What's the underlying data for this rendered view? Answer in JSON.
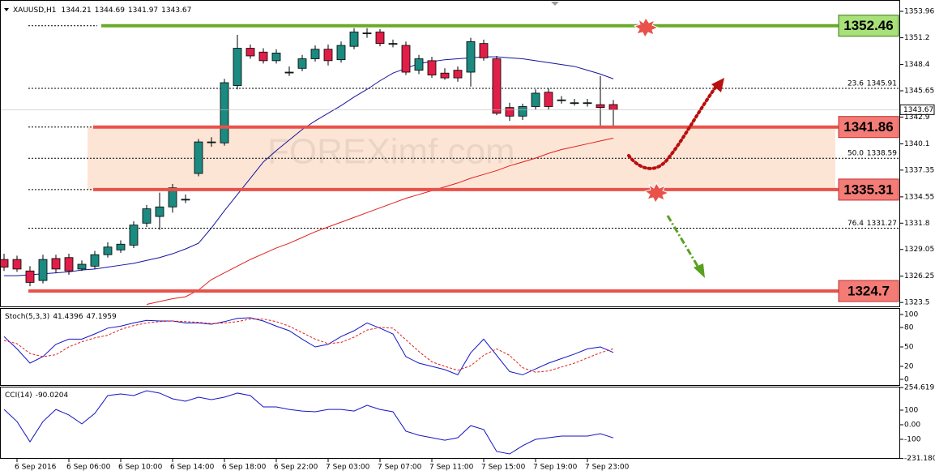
{
  "chart_data": [
    {
      "type": "candlestick",
      "title": "XAUUSD,H1",
      "watermark": "FOREXimf.com",
      "categories": [
        null,
        "6 Sep 2016",
        null,
        null,
        null,
        "6 Sep 06:00",
        null,
        null,
        null,
        "6 Sep 10:00",
        null,
        null,
        null,
        "6 Sep 14:00",
        null,
        null,
        null,
        "6 Sep 18:00",
        null,
        null,
        null,
        "6 Sep 22:00",
        null,
        null,
        null,
        "7 Sep 03:00",
        null,
        null,
        null,
        "7 Sep 07:00",
        null,
        null,
        null,
        "7 Sep 11:00",
        null,
        null,
        null,
        "7 Sep 15:00",
        null,
        null,
        null,
        "7 Sep 19:00",
        null,
        null,
        null,
        "7 Sep 23:00",
        null,
        null
      ],
      "open": [
        1328.0,
        1328.0,
        1326.8,
        1325.8,
        1328.1,
        1328.2,
        1327.0,
        1327.3,
        1328.5,
        1329.0,
        1329.5,
        1331.8,
        1332.5,
        1333.5,
        1334.3,
        1337.0,
        1340.3,
        1340.2,
        1346.2,
        1350.1,
        1349.7,
        1348.8,
        1347.6,
        1348.0,
        1349.0,
        1350.0,
        1348.9,
        1350.3,
        1351.7,
        1351.8,
        1350.6,
        1350.4,
        1347.8,
        1348.8,
        1347.5,
        1347.8,
        1347.6,
        1350.6,
        1349.0,
        1343.9,
        1343.0,
        1344.0,
        1345.5,
        1344.7,
        1344.4,
        1344.4,
        1344.2,
        1344.21
      ],
      "high": [
        1328.6,
        1328.4,
        1327.3,
        1328.5,
        1328.5,
        1328.6,
        1327.9,
        1328.9,
        1329.8,
        1330.0,
        1332.0,
        1333.7,
        1335.0,
        1335.9,
        1334.8,
        1340.6,
        1340.8,
        1346.9,
        1351.5,
        1350.5,
        1350.1,
        1350.0,
        1348.2,
        1349.4,
        1350.4,
        1350.5,
        1350.8,
        1352.2,
        1352.2,
        1352.1,
        1351.0,
        1350.8,
        1349.4,
        1349.2,
        1348.0,
        1348.2,
        1351.2,
        1351.0,
        1349.3,
        1344.4,
        1344.3,
        1345.8,
        1345.9,
        1345.1,
        1344.8,
        1344.8,
        1347.2,
        1344.69
      ],
      "low": [
        1326.8,
        1326.7,
        1325.2,
        1325.5,
        1326.6,
        1326.4,
        1326.8,
        1327.0,
        1328.2,
        1328.7,
        1329.2,
        1331.4,
        1331.1,
        1332.9,
        1333.9,
        1336.7,
        1339.8,
        1339.9,
        1345.8,
        1349.0,
        1348.5,
        1348.5,
        1347.2,
        1347.7,
        1348.7,
        1348.3,
        1348.6,
        1350.0,
        1351.2,
        1350.3,
        1350.2,
        1347.3,
        1347.4,
        1347.0,
        1346.8,
        1346.6,
        1346.1,
        1348.8,
        1343.1,
        1342.5,
        1342.6,
        1343.7,
        1343.7,
        1344.3,
        1344.1,
        1344.0,
        1341.9,
        1341.97
      ],
      "close": [
        1327.2,
        1327.0,
        1325.6,
        1328.0,
        1327.0,
        1326.8,
        1327.5,
        1328.5,
        1329.3,
        1329.6,
        1331.6,
        1333.3,
        1333.5,
        1335.5,
        1334.3,
        1340.3,
        1340.3,
        1346.5,
        1350.1,
        1349.3,
        1348.8,
        1349.6,
        1347.6,
        1349.0,
        1350.0,
        1348.8,
        1350.4,
        1351.8,
        1351.7,
        1350.6,
        1350.6,
        1347.6,
        1349.0,
        1347.3,
        1347.0,
        1347.0,
        1350.8,
        1349.1,
        1343.3,
        1343.0,
        1344.0,
        1345.4,
        1344.0,
        1344.7,
        1344.4,
        1344.4,
        1343.9,
        1343.67
      ],
      "bull_color": "#1b8a80",
      "bear_color": "#e01e48",
      "overlays": [
        {
          "color": "#14149a",
          "values": [
            1326.3,
            1326.3,
            1326.4,
            1326.5,
            1326.6,
            1326.7,
            1326.9,
            1327.0,
            1327.2,
            1327.4,
            1327.6,
            1327.9,
            1328.2,
            1328.6,
            1329.1,
            1329.7,
            1331.3,
            1333.1,
            1334.8,
            1336.5,
            1338.2,
            1339.4,
            1340.5,
            1341.6,
            1342.5,
            1343.3,
            1344.1,
            1345.0,
            1345.8,
            1346.7,
            1347.5,
            1348.0,
            1348.5,
            1348.7,
            1348.9,
            1349.0,
            1349.1,
            1349.2,
            1349.2,
            1349.1,
            1349.0,
            1348.8,
            1348.6,
            1348.4,
            1348.2,
            1347.8,
            1347.4,
            1346.9
          ]
        },
        {
          "color": "#e0201c",
          "values": [
            null,
            null,
            null,
            null,
            null,
            null,
            null,
            null,
            null,
            null,
            null,
            1323.3,
            1323.6,
            1323.9,
            1324.1,
            1324.8,
            1325.9,
            1326.6,
            1327.3,
            1328.0,
            1328.6,
            1329.2,
            1329.7,
            1330.3,
            1330.9,
            1331.4,
            1331.9,
            1332.4,
            1332.9,
            1333.4,
            1333.9,
            1334.4,
            1334.8,
            1335.2,
            1335.6,
            1336.0,
            1336.5,
            1336.9,
            1337.3,
            1337.8,
            1338.2,
            1338.6,
            1339.1,
            1339.5,
            1339.8,
            1340.1,
            1340.4,
            1340.7
          ]
        }
      ],
      "levels": [
        {
          "value": 1352.46,
          "color": "#6aaa2a",
          "box": "#a8e07a"
        },
        {
          "value": 1341.86,
          "color": "#e8524a",
          "box": "#f47c76"
        },
        {
          "value": 1335.31,
          "color": "#e8524a",
          "box": "#f47c76"
        },
        {
          "value": 1324.7,
          "color": "#e8524a",
          "box": "#f47c76"
        }
      ],
      "zone_color": "#fde5d6",
      "fib": [
        {
          "ratio": "23.6",
          "value": 1345.91
        },
        {
          "ratio": "50.0",
          "value": 1338.59
        },
        {
          "ratio": "76.4",
          "value": 1331.27
        }
      ],
      "ylim": [
        1323.09,
        1355.15
      ],
      "yticks": [
        1353.96,
        1351.2,
        1348.4,
        1345.65,
        1342.9,
        1340.1,
        1337.35,
        1334.55,
        1331.8,
        1329.05,
        1326.25,
        1323.5
      ]
    },
    {
      "type": "line",
      "title": "Stoch(5,3,3)",
      "series": [
        {
          "color": "#1414c8",
          "dash": false,
          "values": [
            66,
            47,
            25,
            35,
            54,
            62,
            62,
            70,
            79,
            82,
            87,
            91,
            90,
            90,
            87,
            87,
            85,
            89,
            94,
            95,
            90,
            82,
            75,
            62,
            50,
            54,
            66,
            75,
            87,
            79,
            70,
            35,
            25,
            20,
            15,
            7,
            41,
            62,
            37,
            12,
            7,
            16,
            25,
            32,
            39,
            47,
            50,
            41.4396
          ]
        },
        {
          "color": "#e0201c",
          "dash": true,
          "values": [
            60,
            55,
            40,
            35,
            38,
            50,
            58,
            64,
            68,
            77,
            83,
            87,
            89,
            90,
            89,
            88,
            86,
            87,
            89,
            93,
            93,
            89,
            82,
            72,
            62,
            55,
            57,
            65,
            76,
            80,
            79,
            61,
            43,
            27,
            20,
            14,
            21,
            37,
            47,
            37,
            18,
            11,
            13,
            19,
            25,
            33,
            41,
            47.1959
          ]
        }
      ],
      "ylim": [
        -10,
        110
      ],
      "yticks": [
        100,
        80,
        50,
        20,
        0
      ]
    },
    {
      "type": "line",
      "title": "CCI(14)",
      "series": [
        {
          "color": "#1414c8",
          "dash": false,
          "values": [
            105,
            22,
            -117,
            22,
            105,
            67,
            6,
            78,
            200,
            211,
            200,
            233,
            217,
            178,
            161,
            189,
            172,
            189,
            217,
            200,
            122,
            122,
            105,
            94,
            89,
            105,
            105,
            94,
            133,
            105,
            89,
            -44,
            -72,
            -89,
            -106,
            -89,
            -6,
            -33,
            -183,
            -200,
            -144,
            -100,
            -89,
            -78,
            -78,
            -78,
            -61,
            -90.0204
          ]
        }
      ],
      "ylim": [
        -233.3,
        255.6
      ],
      "yticks": [
        254.619,
        100,
        {
          "value": 0,
          "label": "0.00"
        },
        -100,
        -231.1806
      ]
    }
  ]
}
